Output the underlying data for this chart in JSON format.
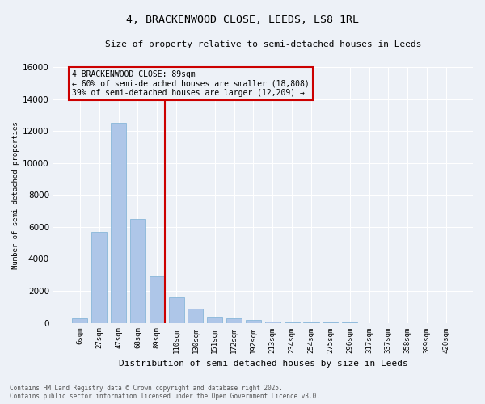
{
  "title_line1": "4, BRACKENWOOD CLOSE, LEEDS, LS8 1RL",
  "title_line2": "Size of property relative to semi-detached houses in Leeds",
  "xlabel": "Distribution of semi-detached houses by size in Leeds",
  "ylabel": "Number of semi-detached properties",
  "categories": [
    "6sqm",
    "27sqm",
    "47sqm",
    "68sqm",
    "89sqm",
    "110sqm",
    "130sqm",
    "151sqm",
    "172sqm",
    "192sqm",
    "213sqm",
    "234sqm",
    "254sqm",
    "275sqm",
    "296sqm",
    "317sqm",
    "337sqm",
    "358sqm",
    "399sqm",
    "420sqm"
  ],
  "values": [
    300,
    5700,
    12500,
    6500,
    2900,
    1600,
    900,
    400,
    300,
    200,
    100,
    50,
    30,
    10,
    5,
    2,
    1,
    0,
    0,
    0
  ],
  "bar_color": "#aec6e8",
  "bar_edge_color": "#7aafd4",
  "vline_color": "#cc0000",
  "vline_x_idx": 4,
  "annotation_text": "4 BRACKENWOOD CLOSE: 89sqm\n← 60% of semi-detached houses are smaller (18,808)\n39% of semi-detached houses are larger (12,209) →",
  "annotation_box_color": "#cc0000",
  "ylim": [
    0,
    16000
  ],
  "yticks": [
    0,
    2000,
    4000,
    6000,
    8000,
    10000,
    12000,
    14000,
    16000
  ],
  "background_color": "#edf1f7",
  "grid_color": "#ffffff",
  "footer_line1": "Contains HM Land Registry data © Crown copyright and database right 2025.",
  "footer_line2": "Contains public sector information licensed under the Open Government Licence v3.0."
}
